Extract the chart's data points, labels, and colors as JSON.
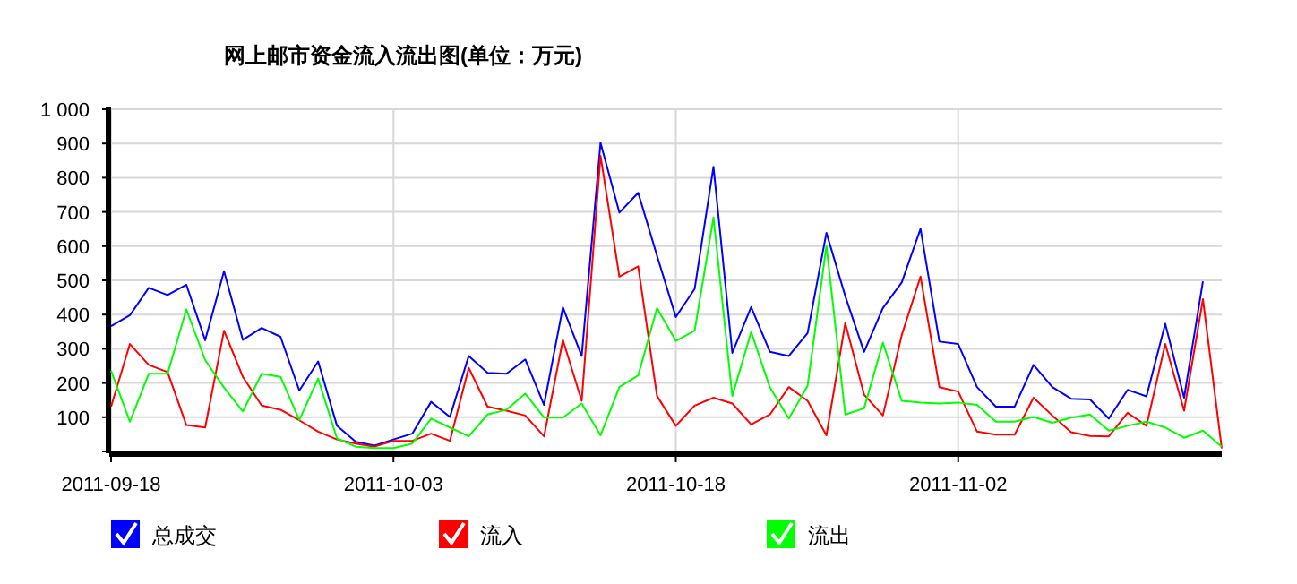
{
  "chart_data": {
    "type": "line",
    "title": "网上邮市资金流入流出图(单位：万元)",
    "x": [
      "2011-09-18",
      "2011-09-19",
      "2011-09-20",
      "2011-09-21",
      "2011-09-22",
      "2011-09-23",
      "2011-09-24",
      "2011-09-25",
      "2011-09-26",
      "2011-09-27",
      "2011-09-28",
      "2011-09-29",
      "2011-09-30",
      "2011-10-01",
      "2011-10-02",
      "2011-10-03",
      "2011-10-04",
      "2011-10-05",
      "2011-10-06",
      "2011-10-07",
      "2011-10-08",
      "2011-10-09",
      "2011-10-10",
      "2011-10-11",
      "2011-10-12",
      "2011-10-13",
      "2011-10-14",
      "2011-10-15",
      "2011-10-16",
      "2011-10-17",
      "2011-10-18",
      "2011-10-19",
      "2011-10-20",
      "2011-10-21",
      "2011-10-22",
      "2011-10-23",
      "2011-10-24",
      "2011-10-25",
      "2011-10-26",
      "2011-10-27",
      "2011-10-28",
      "2011-10-29",
      "2011-10-30",
      "2011-10-31",
      "2011-11-01",
      "2011-11-02",
      "2011-11-03",
      "2011-11-04",
      "2011-11-05",
      "2011-11-06",
      "2011-11-07",
      "2011-11-08",
      "2011-11-09",
      "2011-11-10",
      "2011-11-11",
      "2011-11-12",
      "2011-11-13",
      "2011-11-14",
      "2011-11-15",
      "2011-11-16"
    ],
    "series": [
      {
        "name": "总成交",
        "color": "#0000ff",
        "values": [
          366,
          398,
          478,
          457,
          487,
          325,
          527,
          326,
          361,
          335,
          178,
          263,
          75,
          28,
          17,
          35,
          52,
          145,
          101,
          279,
          230,
          227,
          269,
          136,
          421,
          279,
          902,
          698,
          756,
          572,
          393,
          475,
          832,
          288,
          422,
          291,
          279,
          346,
          639,
          454,
          291,
          419,
          494,
          651,
          321,
          314,
          188,
          131,
          131,
          253,
          188,
          154,
          152,
          96,
          180,
          161,
          373,
          157,
          497,
          null
        ]
      },
      {
        "name": "流入",
        "color": "#ff0000",
        "values": [
          131,
          314,
          253,
          232,
          77,
          70,
          353,
          218,
          134,
          122,
          91,
          58,
          35,
          23,
          14,
          31,
          31,
          52,
          31,
          244,
          131,
          119,
          105,
          44,
          326,
          148,
          864,
          511,
          541,
          162,
          75,
          134,
          157,
          140,
          79,
          108,
          188,
          148,
          47,
          375,
          166,
          105,
          340,
          511,
          188,
          175,
          58,
          49,
          49,
          157,
          105,
          56,
          45,
          44,
          113,
          75,
          314,
          119,
          445,
          9
        ]
      },
      {
        "name": "流出",
        "color": "#00ff00",
        "values": [
          236,
          87,
          227,
          227,
          415,
          267,
          187,
          117,
          227,
          218,
          92,
          213,
          38,
          14,
          10,
          10,
          23,
          96,
          70,
          44,
          108,
          122,
          169,
          99,
          99,
          140,
          47,
          188,
          222,
          419,
          323,
          353,
          684,
          162,
          349,
          187,
          96,
          192,
          602,
          108,
          126,
          318,
          148,
          143,
          140,
          143,
          136,
          87,
          87,
          101,
          84,
          99,
          108,
          61,
          75,
          87,
          70,
          40,
          61,
          14
        ]
      }
    ],
    "xlim": [
      "2011-09-18",
      "2011-11-16"
    ],
    "xticks": [
      "2011-09-18",
      "2011-10-03",
      "2011-10-18",
      "2011-11-02"
    ],
    "ylim": [
      0,
      1000
    ],
    "yticks": [
      {
        "value": 0,
        "label": null
      },
      {
        "value": 100,
        "label": "100"
      },
      {
        "value": 200,
        "label": "200"
      },
      {
        "value": 300,
        "label": "300"
      },
      {
        "value": 400,
        "label": "400"
      },
      {
        "value": 500,
        "label": "500"
      },
      {
        "value": 600,
        "label": "600"
      },
      {
        "value": 700,
        "label": "700"
      },
      {
        "value": 800,
        "label": "800"
      },
      {
        "value": 900,
        "label": "900"
      },
      {
        "value": 1000,
        "label": "1 000"
      }
    ],
    "grid": true,
    "legend": "bottom",
    "line_style": "solid",
    "marker": "none"
  }
}
